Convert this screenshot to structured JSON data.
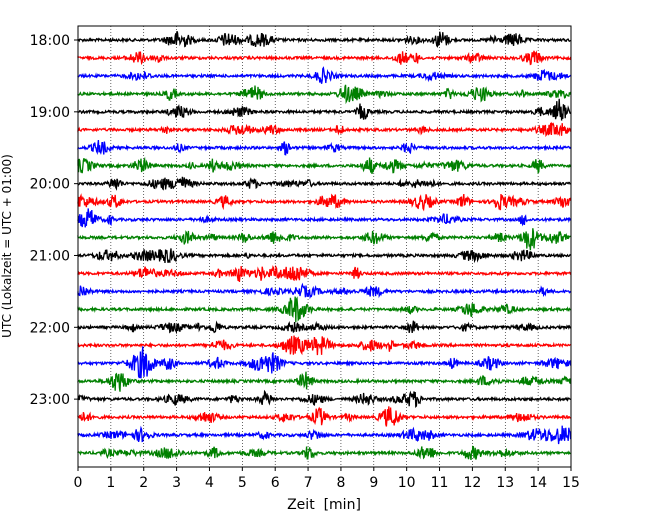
{
  "chart_data": {
    "type": "line",
    "title": "",
    "xlabel": "Zeit  [min]",
    "ylabel": "UTC (Lokalzeit = UTC + 01:00)",
    "xlim": [
      0,
      15
    ],
    "x_ticks": [
      0,
      1,
      2,
      3,
      4,
      5,
      6,
      7,
      8,
      9,
      10,
      11,
      12,
      13,
      14,
      15
    ],
    "y_tick_labels": [
      "18:00",
      "19:00",
      "20:00",
      "21:00",
      "22:00",
      "23:00"
    ],
    "trace_interval_min": 15,
    "start_time": "18:00",
    "trace_count": 24,
    "trace_color_cycle": [
      "#000000",
      "#ff0000",
      "#0000ff",
      "#008000"
    ],
    "x_grid": "dotted vertical lines at each minute",
    "series": [
      {
        "start": "18:00",
        "color": "#000000"
      },
      {
        "start": "18:15",
        "color": "#ff0000"
      },
      {
        "start": "18:30",
        "color": "#0000ff"
      },
      {
        "start": "18:45",
        "color": "#008000"
      },
      {
        "start": "19:00",
        "color": "#000000"
      },
      {
        "start": "19:15",
        "color": "#ff0000"
      },
      {
        "start": "19:30",
        "color": "#0000ff"
      },
      {
        "start": "19:45",
        "color": "#008000"
      },
      {
        "start": "20:00",
        "color": "#000000"
      },
      {
        "start": "20:15",
        "color": "#ff0000"
      },
      {
        "start": "20:30",
        "color": "#0000ff"
      },
      {
        "start": "20:45",
        "color": "#008000"
      },
      {
        "start": "21:00",
        "color": "#000000"
      },
      {
        "start": "21:15",
        "color": "#ff0000"
      },
      {
        "start": "21:30",
        "color": "#0000ff"
      },
      {
        "start": "21:45",
        "color": "#008000"
      },
      {
        "start": "22:00",
        "color": "#000000"
      },
      {
        "start": "22:15",
        "color": "#ff0000"
      },
      {
        "start": "22:30",
        "color": "#0000ff"
      },
      {
        "start": "22:45",
        "color": "#008000"
      },
      {
        "start": "23:00",
        "color": "#000000"
      },
      {
        "start": "23:15",
        "color": "#ff0000"
      },
      {
        "start": "23:30",
        "color": "#0000ff"
      },
      {
        "start": "23:45",
        "color": "#008000"
      }
    ]
  }
}
